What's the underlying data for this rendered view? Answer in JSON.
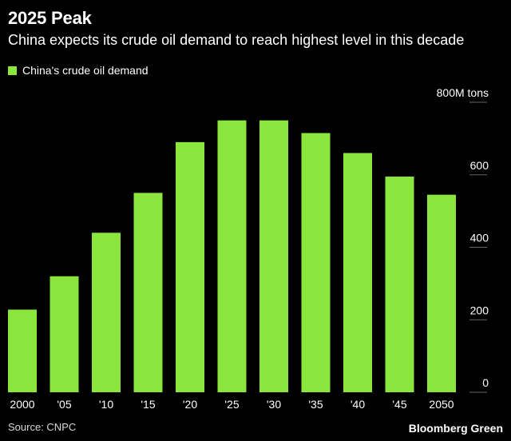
{
  "header": {
    "title": "2025 Peak",
    "subtitle": "China expects its crude oil demand to reach highest level in this decade"
  },
  "footer": {
    "source": "Source: CNPC",
    "brand": "Bloomberg Green"
  },
  "colors": {
    "background": "#000000",
    "bar": "#8ae63c",
    "text": "#ffffff",
    "gridline": "#666666"
  },
  "chart_data": {
    "type": "bar",
    "legend": "China's crude oil demand",
    "legend_placement": "top-left",
    "y_axis_position": "right",
    "grid": false,
    "categories": [
      "2000",
      "'05",
      "'10",
      "'15",
      "'20",
      "'25",
      "'30",
      "'35",
      "'40",
      "'45",
      "2050"
    ],
    "series": [
      {
        "name": "China's crude oil demand",
        "values": [
          228,
          320,
          440,
          550,
          690,
          750,
          750,
          715,
          660,
          595,
          545
        ]
      }
    ],
    "ylim": [
      0,
      800
    ],
    "yticks": [
      {
        "value": 0,
        "label": "0"
      },
      {
        "value": 200,
        "label": "200"
      },
      {
        "value": 400,
        "label": "400"
      },
      {
        "value": 600,
        "label": "600"
      },
      {
        "value": 800,
        "label": "800M tons"
      }
    ]
  }
}
